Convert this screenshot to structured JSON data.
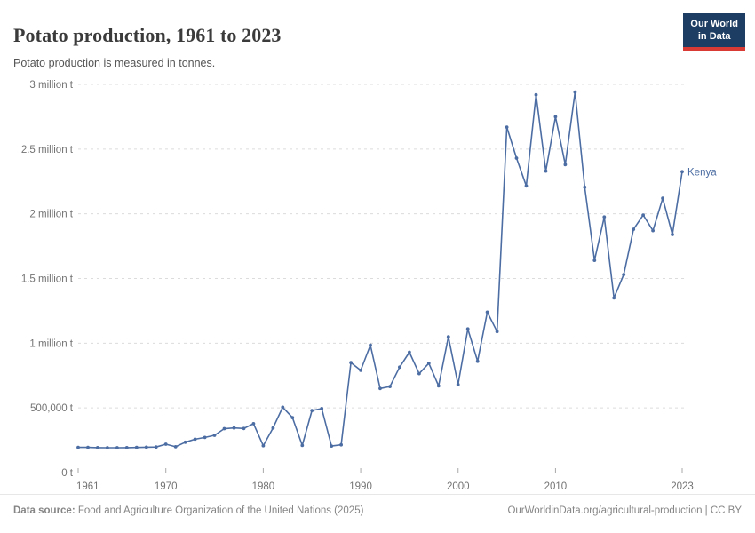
{
  "header": {
    "title": "Potato production, 1961 to 2023",
    "subtitle": "Potato production is measured in tonnes.",
    "logo": {
      "line1": "Our World",
      "line2": "in Data"
    }
  },
  "footer": {
    "source_label": "Data source:",
    "source_text": " Food and Agriculture Organization of the United Nations (2025)",
    "credit": "OurWorldinData.org/agricultural-production | CC BY"
  },
  "colors": {
    "line": "#4c6da3",
    "grid": "#dcdcdc",
    "axis": "#a9a9a9",
    "tick_label": "#737373",
    "title": "#3b3b3b",
    "subtitle": "#545454",
    "footer_text": "#858585",
    "logo_bg": "#1d3d63",
    "logo_red": "#d93a34"
  },
  "chart_data": {
    "type": "line",
    "title": "Potato production, 1961 to 2023",
    "ylabel": "",
    "xlabel": "",
    "unit": "tonnes",
    "grid": "horizontal-dashed",
    "legend": "end-of-line-label",
    "ylim": [
      0,
      3000000
    ],
    "xlim": [
      1961,
      2023
    ],
    "y_ticks": [
      {
        "value": 0,
        "label": "0 t"
      },
      {
        "value": 500000,
        "label": "500,000 t"
      },
      {
        "value": 1000000,
        "label": "1 million t"
      },
      {
        "value": 1500000,
        "label": "1.5 million t"
      },
      {
        "value": 2000000,
        "label": "2 million t"
      },
      {
        "value": 2500000,
        "label": "2.5 million t"
      },
      {
        "value": 3000000,
        "label": "3 million t"
      }
    ],
    "x_ticks": [
      1961,
      1970,
      1980,
      1990,
      2000,
      2010,
      2023
    ],
    "x": [
      1961,
      1962,
      1963,
      1964,
      1965,
      1966,
      1967,
      1968,
      1969,
      1970,
      1971,
      1972,
      1973,
      1974,
      1975,
      1976,
      1977,
      1978,
      1979,
      1980,
      1981,
      1982,
      1983,
      1984,
      1985,
      1986,
      1987,
      1988,
      1989,
      1990,
      1991,
      1992,
      1993,
      1994,
      1995,
      1996,
      1997,
      1998,
      1999,
      2000,
      2001,
      2002,
      2003,
      2004,
      2005,
      2006,
      2007,
      2008,
      2009,
      2010,
      2011,
      2012,
      2013,
      2014,
      2015,
      2016,
      2017,
      2018,
      2019,
      2020,
      2021,
      2022,
      2023
    ],
    "series": [
      {
        "name": "Kenya",
        "color": "#4c6da3",
        "values": [
          195000,
          195000,
          193000,
          192000,
          192000,
          193000,
          194000,
          196000,
          198000,
          220000,
          200000,
          235000,
          258000,
          272000,
          288000,
          340000,
          345000,
          341000,
          378000,
          208000,
          345000,
          505000,
          425000,
          210000,
          480000,
          495000,
          205000,
          215000,
          850000,
          790000,
          985000,
          650000,
          665000,
          815000,
          930000,
          765000,
          845000,
          670000,
          1050000,
          680000,
          1110000,
          860000,
          1240000,
          1090000,
          2670000,
          2430000,
          2215000,
          2920000,
          2330000,
          2750000,
          2380000,
          2940000,
          2205000,
          1640000,
          1975000,
          1350000,
          1530000,
          1880000,
          1990000,
          1870000,
          2120000,
          1840000,
          2325000
        ]
      }
    ]
  }
}
